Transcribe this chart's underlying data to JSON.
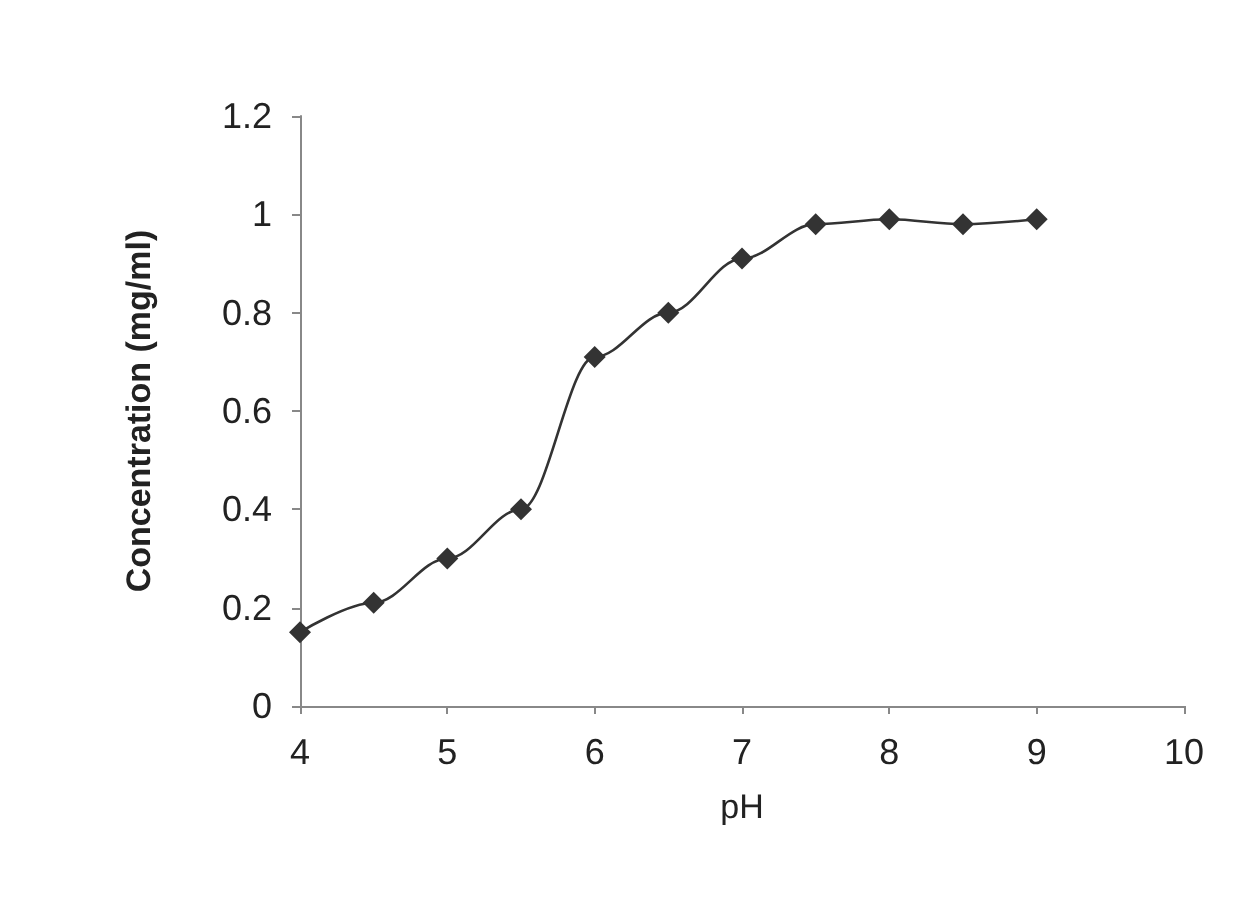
{
  "chart_data": {
    "type": "line",
    "xlabel": "pH",
    "ylabel": "Concentration (mg/ml)",
    "x": [
      4,
      4.5,
      5,
      5.5,
      6,
      6.5,
      7,
      7.5,
      8,
      8.5,
      9
    ],
    "series": [
      {
        "color": "#333333",
        "values": [
          0.15,
          0.21,
          0.3,
          0.4,
          0.71,
          0.8,
          0.91,
          0.98,
          0.99,
          0.98,
          0.99
        ]
      }
    ],
    "xlim": [
      4,
      10
    ],
    "xticks": [
      4,
      5,
      6,
      7,
      8,
      9,
      10
    ],
    "ylim": [
      0,
      1.2
    ],
    "yticks": [
      0,
      0.2,
      0.4,
      0.6,
      0.8,
      1,
      1.2
    ],
    "grid": false,
    "marker": "diamond",
    "line_style": "solid"
  }
}
